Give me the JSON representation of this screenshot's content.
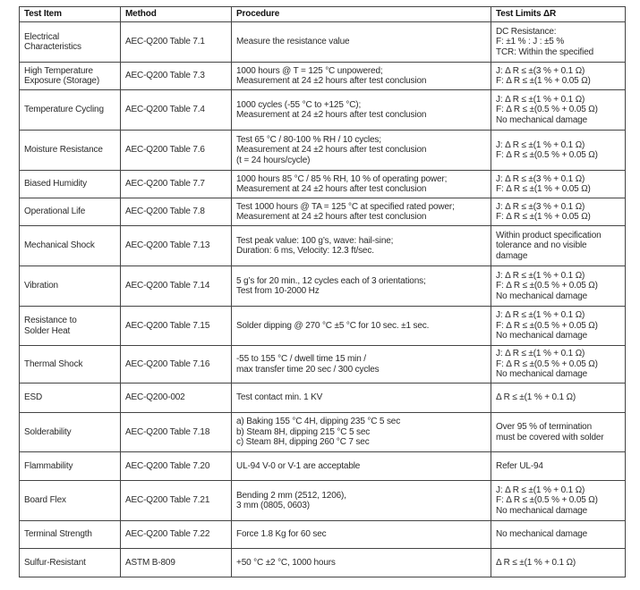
{
  "headers": [
    "Test Item",
    "Method",
    "Procedure",
    "Test Limits ΔR"
  ],
  "rows": [
    {
      "item": "Electrical\nCharacteristics",
      "method": "AEC-Q200 Table 7.1",
      "procedure": "Measure the resistance value",
      "limits": "DC Resistance:\nF: ±1 % : J : ±5 %\nTCR: Within the specified"
    },
    {
      "item": "High Temperature\nExposure (Storage)",
      "method": "AEC-Q200 Table 7.3",
      "procedure": "1000 hours @ T = 125 °C unpowered;\nMeasurement at 24 ±2 hours after test conclusion",
      "limits": "J: Δ R ≤ ±(3 % + 0.1 Ω)\nF: Δ R ≤ ±(1 % + 0.05 Ω)"
    },
    {
      "item": "Temperature Cycling",
      "method": "AEC-Q200 Table 7.4",
      "procedure": "1000 cycles (-55 °C to +125 °C);\nMeasurement at 24 ±2 hours after test conclusion",
      "limits": "J: Δ R ≤ ±(1 % + 0.1 Ω)\nF: Δ R ≤ ±(0.5 % + 0.05 Ω)\nNo mechanical damage"
    },
    {
      "item": "Moisture Resistance",
      "method": "AEC-Q200 Table 7.6",
      "procedure": "Test 65 °C / 80-100 % RH / 10 cycles;\nMeasurement at 24 ±2 hours after test conclusion\n(t = 24 hours/cycle)",
      "limits": "J: Δ R ≤ ±(1 % + 0.1 Ω)\nF: Δ R ≤ ±(0.5 % + 0.05 Ω)"
    },
    {
      "item": "Biased Humidity",
      "method": "AEC-Q200 Table 7.7",
      "procedure": "1000 hours 85 °C / 85 % RH, 10 % of operating power;\nMeasurement at 24 ±2 hours after test conclusion",
      "limits": "J: Δ R ≤ ±(3 % + 0.1 Ω)\nF: Δ R ≤ ±(1 % + 0.05 Ω)"
    },
    {
      "item": "Operational Life",
      "method": "AEC-Q200 Table 7.8",
      "procedure": "Test 1000 hours @ TA = 125 °C at specified rated power;\nMeasurement at 24 ±2 hours after test conclusion",
      "limits": "J: Δ R ≤ ±(3 % + 0.1 Ω)\nF: Δ R ≤ ±(1 % + 0.05 Ω)"
    },
    {
      "item": "Mechanical Shock",
      "method": "AEC-Q200 Table 7.13",
      "procedure": "Test peak value: 100 g’s, wave: hail-sine;\nDuration: 6 ms, Velocity: 12.3 ft/sec.",
      "limits": "Within product specification\ntolerance and no visible\ndamage"
    },
    {
      "item": "Vibration",
      "method": "AEC-Q200 Table 7.14",
      "procedure": "5 g’s for 20 min., 12 cycles each of 3 orientations;\nTest from 10-2000 Hz",
      "limits": "J: Δ R ≤ ±(1 % + 0.1 Ω)\nF: Δ R ≤ ±(0.5 % + 0.05 Ω)\nNo mechanical damage"
    },
    {
      "item": "Resistance to\nSolder Heat",
      "method": "AEC-Q200 Table 7.15",
      "procedure": "Solder dipping @ 270 °C ±5 °C for 10 sec. ±1 sec.",
      "limits": "J: Δ R ≤ ±(1 % + 0.1 Ω)\nF: Δ R ≤ ±(0.5 % + 0.05 Ω)\nNo mechanical damage"
    },
    {
      "item": "Thermal Shock",
      "method": "AEC-Q200 Table 7.16",
      "procedure": "-55 to 155 °C / dwell time 15 min /\nmax transfer time 20 sec / 300 cycles",
      "limits": "J: Δ R ≤ ±(1 % + 0.1 Ω)\nF: Δ R ≤ ±(0.5 % + 0.05 Ω)\nNo mechanical damage"
    },
    {
      "item": "ESD",
      "method": "AEC-Q200-002",
      "procedure": "Test contact min. 1 KV",
      "limits": "Δ R ≤ ±(1 % + 0.1 Ω)"
    },
    {
      "item": "Solderability",
      "method": "AEC-Q200 Table 7.18",
      "procedure": "a) Baking 155 °C 4H, dipping 235 °C 5 sec\nb) Steam 8H, dipping 215 °C 5 sec\nc) Steam 8H, dipping 260 °C 7 sec",
      "limits": "Over 95 % of termination\nmust be covered with solder"
    },
    {
      "item": "Flammability",
      "method": "AEC-Q200 Table 7.20",
      "procedure": "UL-94 V-0 or V-1 are acceptable",
      "limits": "Refer UL-94"
    },
    {
      "item": "Board Flex",
      "method": "AEC-Q200 Table 7.21",
      "procedure": "Bending 2 mm (2512, 1206),\n3 mm (0805, 0603)",
      "limits": "J: Δ R ≤ ±(1 % + 0.1 Ω)\nF: Δ R ≤ ±(0.5 % + 0.05 Ω)\nNo mechanical damage"
    },
    {
      "item": "Terminal Strength",
      "method": "AEC-Q200 Table 7.22",
      "procedure": "Force 1.8 Kg for 60 sec",
      "limits": "No mechanical damage"
    },
    {
      "item": "Sulfur-Resistant",
      "method": "ASTM B-809",
      "procedure": "+50 °C ±2 °C, 1000 hours",
      "limits": "Δ R ≤ ±(1 % + 0.1 Ω)"
    }
  ]
}
